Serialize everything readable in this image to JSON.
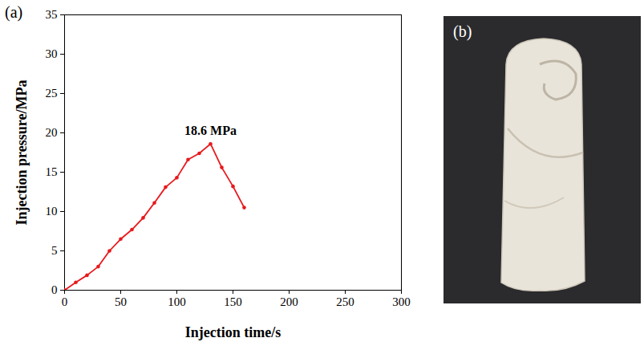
{
  "chart_data": {
    "type": "line",
    "panel_label": "(a)",
    "x_label": "Injection time/s",
    "y_label": "Injection pressure/MPa",
    "x": [
      0,
      10,
      20,
      30,
      40,
      50,
      60,
      70,
      80,
      90,
      100,
      110,
      120,
      130,
      140,
      150,
      160
    ],
    "values": [
      0,
      1.0,
      1.9,
      3.0,
      5.0,
      6.5,
      7.7,
      9.2,
      11.1,
      13.1,
      14.3,
      16.6,
      17.4,
      18.6,
      15.6,
      13.2,
      10.5
    ],
    "color": "#e8191c",
    "marker": "circle",
    "xlim": [
      0,
      300
    ],
    "xticks": [
      0,
      50,
      100,
      150,
      200,
      250,
      300
    ],
    "ylim": [
      0,
      35
    ],
    "yticks": [
      0,
      5,
      10,
      15,
      20,
      25,
      30,
      35
    ],
    "annotations": [
      {
        "x": 130,
        "y": 18.6,
        "text": "18.6 MPa"
      }
    ]
  },
  "photo": {
    "label": "(b)"
  }
}
